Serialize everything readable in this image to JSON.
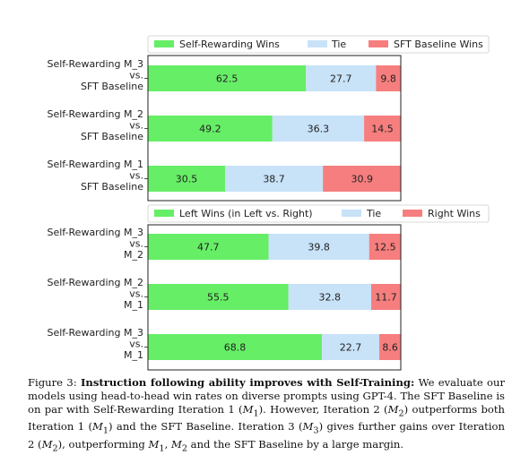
{
  "chart_data": [
    {
      "type": "bar",
      "orientation": "horizontal",
      "stacked": true,
      "xlim": [
        0,
        100
      ],
      "legend": {
        "placement": "top",
        "entries": [
          "Self-Rewarding Wins",
          "Tie",
          "SFT Baseline Wins"
        ]
      },
      "categories": [
        [
          "Self-Rewarding M_3",
          "vs.",
          "SFT Baseline"
        ],
        [
          "Self-Rewarding M_2",
          "vs.",
          "SFT Baseline"
        ],
        [
          "Self-Rewarding M_1",
          "vs.",
          "SFT Baseline"
        ]
      ],
      "series": [
        {
          "name": "Self-Rewarding Wins",
          "color": "#66ee66",
          "values": [
            62.5,
            49.2,
            30.5
          ]
        },
        {
          "name": "Tie",
          "color": "#c8e2f8",
          "values": [
            27.7,
            36.3,
            38.7
          ]
        },
        {
          "name": "SFT Baseline Wins",
          "color": "#f67e7e",
          "values": [
            9.8,
            14.5,
            30.9
          ]
        }
      ]
    },
    {
      "type": "bar",
      "orientation": "horizontal",
      "stacked": true,
      "xlim": [
        0,
        100
      ],
      "legend": {
        "placement": "top",
        "entries": [
          "Left Wins (in Left vs. Right)",
          "Tie",
          "Right Wins"
        ]
      },
      "categories": [
        [
          "Self-Rewarding M_3",
          "vs.",
          "M_2"
        ],
        [
          "Self-Rewarding M_2",
          "vs.",
          "M_1"
        ],
        [
          "Self-Rewarding M_3",
          "vs.",
          "M_1"
        ]
      ],
      "series": [
        {
          "name": "Left Wins (in Left vs. Right)",
          "color": "#66ee66",
          "values": [
            47.7,
            55.5,
            68.8
          ]
        },
        {
          "name": "Tie",
          "color": "#c8e2f8",
          "values": [
            39.8,
            32.8,
            22.7
          ]
        },
        {
          "name": "Right Wins",
          "color": "#f67e7e",
          "values": [
            12.5,
            11.7,
            8.6
          ]
        }
      ]
    }
  ],
  "caption": {
    "label": "Figure 3:",
    "title": "Instruction following ability improves with Self-Training:",
    "p1": " We evaluate our models using head-to-head win rates on diverse prompts using GPT-4. The SFT Baseline is on par with Self-Rewarding Iteration 1 (",
    "m1a": "M",
    "s1a": "1",
    "p2": "). However, Iteration 2 (",
    "m2a": "M",
    "s2a": "2",
    "p3": ") outperforms both Iteration 1 (",
    "m1b": "M",
    "s1b": "1",
    "p4": ") and the SFT Baseline. Iteration 3 (",
    "m3a": "M",
    "s3a": "3",
    "p5": ") gives further gains over Iteration 2 (",
    "m2b": "M",
    "s2b": "2",
    "p6": "), outperforming ",
    "m1c": "M",
    "s1c": "1",
    "p7": ", ",
    "m2c": "M",
    "s2c": "2",
    "p8": " and the SFT Baseline by a large margin."
  }
}
